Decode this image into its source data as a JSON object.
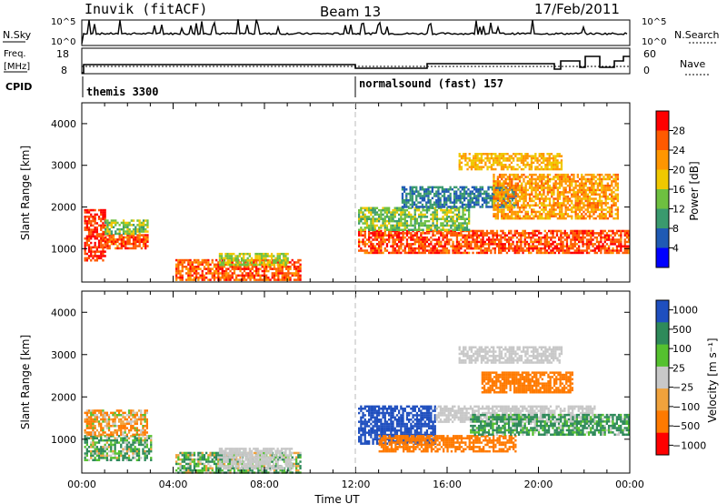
{
  "header": {
    "station": "Inuvik (fitACF)",
    "beam": "Beam 13",
    "date": "17/Feb/2011"
  },
  "strip": {
    "nsky_label": "N.Sky",
    "nsky_ticks": [
      "10^5",
      "10^0"
    ],
    "nsearch_label": "N.Search",
    "nsearch_ticks": [
      "10^5",
      "10^0"
    ],
    "freq_label": "Freq.",
    "freq_unit": "[MHz]",
    "freq_ticks": [
      "18",
      "8"
    ],
    "nave_label": "Nave",
    "nave_ticks": [
      "60",
      "0"
    ],
    "cpid_label": "CPID",
    "cpid_segments": [
      "themis 3300",
      "normalsound (fast) 157"
    ]
  },
  "colors": {
    "power_scale": [
      "#ff0000",
      "#ff5a00",
      "#ff9600",
      "#f0c800",
      "#6ec040",
      "#3a9a6e",
      "#1f5ab4",
      "#0000ff"
    ],
    "velocity_scale": [
      "#1f4fbf",
      "#2e8a5a",
      "#55c12f",
      "#c8c8c8",
      "#f0a23c",
      "#ff7a00",
      "#ff0000"
    ]
  },
  "chart_data": [
    {
      "type": "heatmap",
      "name_key": "power",
      "ylabel": "Slant Range [km]",
      "yticks": [
        "1000",
        "2000",
        "3000",
        "4000"
      ],
      "ylim": [
        200,
        4500
      ],
      "xlim_hours": [
        0,
        24
      ],
      "colorbar_label": "Power [dB]",
      "colorbar_ticks": [
        "4",
        "8",
        "12",
        "16",
        "20",
        "24",
        "28"
      ],
      "regions": [
        {
          "t0": 0.1,
          "t1": 1.0,
          "r0": 700,
          "r1": 1950,
          "v": 26
        },
        {
          "t0": 1.0,
          "t1": 2.9,
          "r0": 1000,
          "r1": 1350,
          "v": 25
        },
        {
          "t0": 1.0,
          "t1": 2.9,
          "r0": 1350,
          "r1": 1700,
          "v": 12
        },
        {
          "t0": 4.1,
          "t1": 9.6,
          "r0": 250,
          "r1": 750,
          "v": 24
        },
        {
          "t0": 6.0,
          "t1": 9.0,
          "r0": 600,
          "r1": 900,
          "v": 14
        },
        {
          "t0": 12.1,
          "t1": 24.0,
          "r0": 900,
          "r1": 1450,
          "v": 25
        },
        {
          "t0": 12.1,
          "t1": 17.0,
          "r0": 1450,
          "r1": 2000,
          "v": 12
        },
        {
          "t0": 14.0,
          "t1": 19.0,
          "r0": 2000,
          "r1": 2500,
          "v": 6
        },
        {
          "t0": 18.0,
          "t1": 23.5,
          "r0": 1700,
          "r1": 2800,
          "v": 20
        },
        {
          "t0": 16.5,
          "t1": 21.0,
          "r0": 2900,
          "r1": 3300,
          "v": 18
        }
      ]
    },
    {
      "type": "heatmap",
      "name_key": "velocity",
      "ylabel": "Slant Range [km]",
      "yticks": [
        "1000",
        "2000",
        "3000",
        "4000"
      ],
      "ylim": [
        200,
        4500
      ],
      "xlabel": "Time UT",
      "xticks": [
        "00:00",
        "04:00",
        "08:00",
        "12:00",
        "16:00",
        "20:00",
        "00:00"
      ],
      "xlim_hours": [
        0,
        24
      ],
      "colorbar_label": "Velocity [m s⁻¹]",
      "colorbar_ticks": [
        "1000",
        "500",
        "100",
        "25",
        "−25",
        "−100",
        "−500",
        "−1000"
      ],
      "regions": [
        {
          "t0": 0.1,
          "t1": 3.0,
          "r0": 500,
          "r1": 1100,
          "v": 100
        },
        {
          "t0": 0.1,
          "t1": 2.9,
          "r0": 1100,
          "r1": 1700,
          "v": -100
        },
        {
          "t0": 4.1,
          "t1": 9.6,
          "r0": 200,
          "r1": 700,
          "v": 80
        },
        {
          "t0": 6.0,
          "t1": 9.2,
          "r0": 300,
          "r1": 800,
          "v": 0
        },
        {
          "t0": 12.1,
          "t1": 15.5,
          "r0": 900,
          "r1": 1800,
          "v": 700
        },
        {
          "t0": 13.0,
          "t1": 19.0,
          "r0": 700,
          "r1": 1100,
          "v": -300
        },
        {
          "t0": 15.5,
          "t1": 22.5,
          "r0": 1400,
          "r1": 1800,
          "v": 0
        },
        {
          "t0": 17.0,
          "t1": 24.0,
          "r0": 1100,
          "r1": 1600,
          "v": 150
        },
        {
          "t0": 17.5,
          "t1": 21.5,
          "r0": 2100,
          "r1": 2600,
          "v": -300
        },
        {
          "t0": 16.5,
          "t1": 21.0,
          "r0": 2800,
          "r1": 3200,
          "v": 0
        }
      ]
    }
  ]
}
